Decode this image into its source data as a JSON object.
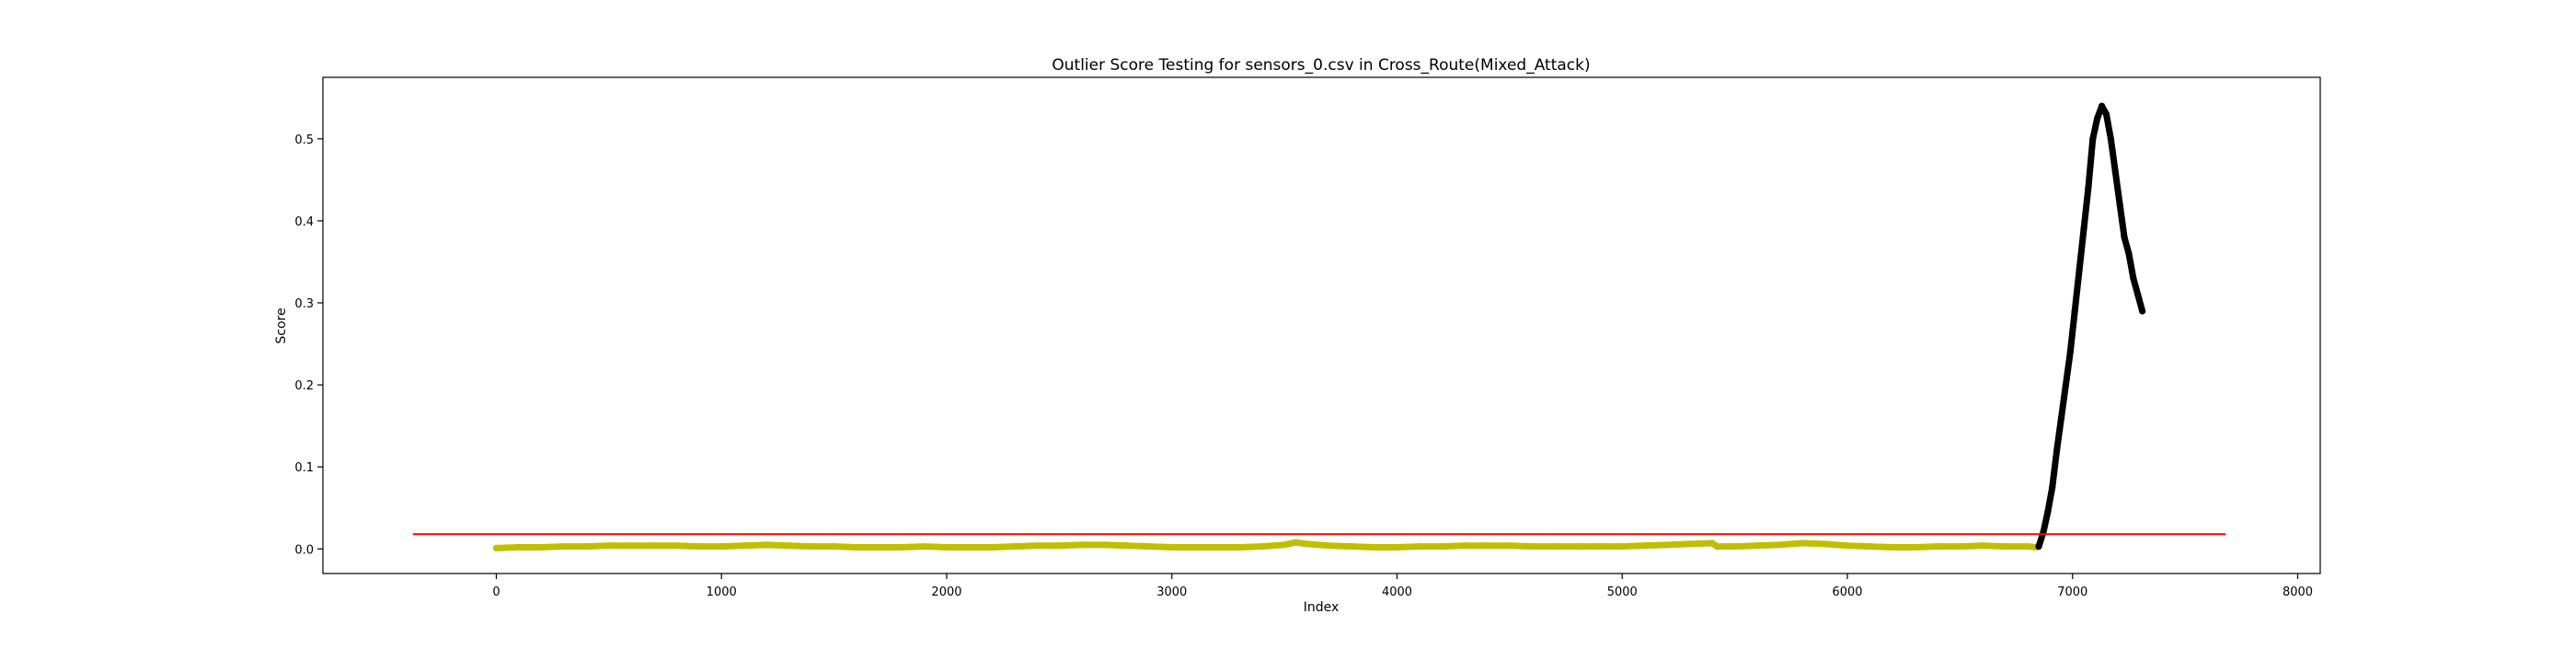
{
  "chart_data": {
    "type": "scatter",
    "title": "Outlier Score Testing for sensors_0.csv in Cross_Route(Mixed_Attack)",
    "xlabel": "Index",
    "ylabel": "Score",
    "xlim": [
      -770,
      8100
    ],
    "ylim": [
      -0.03,
      0.575
    ],
    "x_ticks": [
      0,
      1000,
      2000,
      3000,
      4000,
      5000,
      6000,
      7000,
      8000
    ],
    "y_ticks": [
      0.0,
      0.1,
      0.2,
      0.3,
      0.4,
      0.5
    ],
    "x_tick_labels": [
      "0",
      "1000",
      "2000",
      "3000",
      "4000",
      "5000",
      "6000",
      "7000",
      "8000"
    ],
    "y_tick_labels": [
      "0.0",
      "0.1",
      "0.2",
      "0.3",
      "0.4",
      "0.5"
    ],
    "grid": false,
    "threshold": {
      "y": 0.018,
      "x_range": [
        -370,
        7680
      ],
      "color": "#ff0000"
    },
    "series": [
      {
        "color": "#bfbf00",
        "marker": "circle",
        "x": [
          0,
          100,
          200,
          300,
          400,
          500,
          600,
          700,
          800,
          900,
          1000,
          1100,
          1200,
          1300,
          1400,
          1500,
          1600,
          1700,
          1800,
          1900,
          2000,
          2100,
          2200,
          2300,
          2400,
          2500,
          2600,
          2700,
          2800,
          2900,
          3000,
          3100,
          3200,
          3300,
          3400,
          3500,
          3550,
          3600,
          3700,
          3800,
          3900,
          4000,
          4100,
          4200,
          4300,
          4400,
          4500,
          4600,
          4700,
          4800,
          4900,
          5000,
          5100,
          5200,
          5300,
          5400,
          5420,
          5500,
          5600,
          5700,
          5800,
          5900,
          6000,
          6100,
          6200,
          6300,
          6400,
          6500,
          6600,
          6700,
          6800,
          6840
        ],
        "y": [
          0.001,
          0.002,
          0.002,
          0.003,
          0.003,
          0.004,
          0.004,
          0.004,
          0.004,
          0.003,
          0.003,
          0.004,
          0.005,
          0.004,
          0.003,
          0.003,
          0.002,
          0.002,
          0.002,
          0.003,
          0.002,
          0.002,
          0.002,
          0.003,
          0.004,
          0.004,
          0.005,
          0.005,
          0.004,
          0.003,
          0.002,
          0.002,
          0.002,
          0.002,
          0.003,
          0.005,
          0.008,
          0.006,
          0.004,
          0.003,
          0.002,
          0.002,
          0.003,
          0.003,
          0.004,
          0.004,
          0.004,
          0.003,
          0.003,
          0.003,
          0.003,
          0.003,
          0.004,
          0.005,
          0.006,
          0.007,
          0.003,
          0.003,
          0.004,
          0.005,
          0.007,
          0.006,
          0.004,
          0.003,
          0.002,
          0.002,
          0.003,
          0.003,
          0.004,
          0.003,
          0.003,
          0.002
        ]
      },
      {
        "color": "#000000",
        "marker": "circle",
        "x": [
          6850,
          6870,
          6890,
          6910,
          6930,
          6950,
          6970,
          6990,
          7010,
          7030,
          7050,
          7070,
          7090,
          7110,
          7130,
          7150,
          7170,
          7190,
          7210,
          7230,
          7250,
          7270,
          7290,
          7310
        ],
        "y": [
          0.003,
          0.02,
          0.045,
          0.075,
          0.12,
          0.16,
          0.2,
          0.24,
          0.29,
          0.34,
          0.39,
          0.44,
          0.5,
          0.525,
          0.54,
          0.53,
          0.5,
          0.46,
          0.42,
          0.38,
          0.36,
          0.33,
          0.31,
          0.29
        ]
      }
    ]
  }
}
